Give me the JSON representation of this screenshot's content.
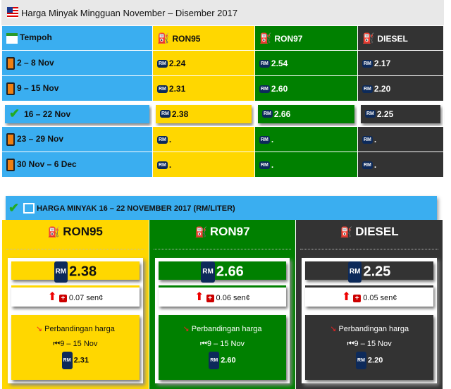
{
  "title": "Harga Minyak Mingguan November – Disember 2017",
  "table": {
    "headers": [
      "Tempoh",
      "RON95",
      "RON97",
      "DIESEL"
    ],
    "rows": [
      {
        "period": "2 – 8 Nov",
        "ron95": "2.24",
        "ron97": "2.54",
        "diesel": "2.17"
      },
      {
        "period": "9 – 15 Nov",
        "ron95": "2.31",
        "ron97": "2.60",
        "diesel": "2.20"
      },
      {
        "period": "16 – 22 Nov",
        "ron95": "2.38",
        "ron97": "2.66",
        "diesel": "2.25",
        "selected": true
      },
      {
        "period": "23 – 29 Nov",
        "ron95": ".",
        "ron97": ".",
        "diesel": "."
      },
      {
        "period": "30 Nov – 6 Dec",
        "ron95": ".",
        "ron97": ".",
        "diesel": "."
      }
    ]
  },
  "currency": "RM",
  "section_title": "HARGA MINYAK 16 – 22 NOVEMBER 2017 (RM/LITER)",
  "panels": [
    {
      "name": "RON95",
      "price": "2.38",
      "change": "0.07 sen¢",
      "compare_label": "Perbandingan harga",
      "prev_period": "9 – 15 Nov",
      "prev_price": "2.31"
    },
    {
      "name": "RON97",
      "price": "2.66",
      "change": "0.06 sen¢",
      "compare_label": "Perbandingan harga",
      "prev_period": "9 – 15 Nov",
      "prev_price": "2.60"
    },
    {
      "name": "DIESEL",
      "price": "2.25",
      "change": "0.05 sen¢",
      "compare_label": "Perbandingan harga",
      "prev_period": "9 – 15 Nov",
      "prev_price": "2.20"
    }
  ],
  "colors": {
    "blue": "#3aaef0",
    "ron95": "#ffd700",
    "ron97": "#008000",
    "diesel": "#333333"
  }
}
